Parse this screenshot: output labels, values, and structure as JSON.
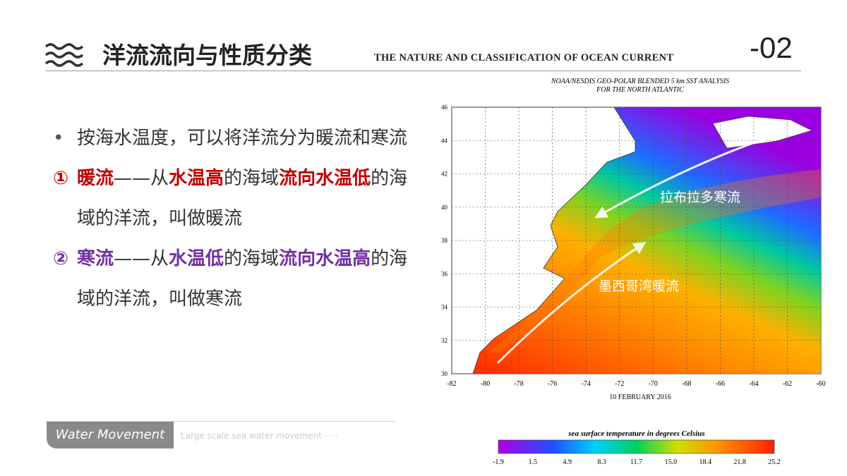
{
  "header": {
    "title": "洋流流向与性质分类",
    "subtitle": "THE NATURE AND CLASSIFICATION OF OCEAN CURRENT",
    "number": "-02"
  },
  "bullets": [
    {
      "marker": "•",
      "segments": [
        "按海水温度，可以将洋流分为暖流和寒流"
      ]
    },
    {
      "marker": "①",
      "segments": [
        "暖流",
        "——从",
        "水温高",
        "的海域",
        "流向水温低",
        "的海域的洋流，叫做暖流"
      ]
    },
    {
      "marker": "②",
      "segments": [
        "寒流",
        "——从",
        "水温低",
        "的海域",
        "流向水温高",
        "的海域的洋流，叫做寒流"
      ]
    }
  ],
  "footer": {
    "tag": "Water Movement",
    "text": "Large scale sea water movement······"
  },
  "map": {
    "title_line1": "NOAA/NESDIS GEO-POLAR BLENDED 5 km SST ANALYSIS",
    "title_line2": "FOR THE NORTH ATLANTIC",
    "x_labels": [
      -82,
      -80,
      -78,
      -76,
      -74,
      -72,
      -70,
      -68,
      -66,
      -64,
      -62,
      -60
    ],
    "y_labels": [
      30,
      32,
      34,
      36,
      38,
      40,
      42,
      44,
      46
    ],
    "date": "10 FEBRUARY 2016",
    "labels": [
      "拉布拉多寒流",
      "墨西哥湾暖流"
    ],
    "colorbar_title": "sea surface temperature in degrees Celsius",
    "colorbar_labels": [
      "-1.9",
      "1.5",
      "4.9",
      "8.3",
      "11.7",
      "15.0",
      "18.4",
      "21.8",
      "25.2"
    ]
  }
}
